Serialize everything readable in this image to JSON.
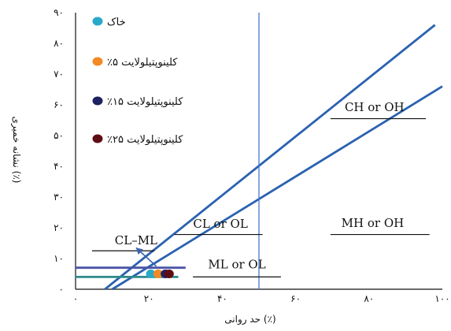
{
  "chart_data": {
    "type": "scatter",
    "title": "",
    "xlabel": "حد روانی (٪)",
    "ylabel": "نشانه خمیری (٪)",
    "xlim": [
      0,
      100
    ],
    "ylim": [
      0,
      90
    ],
    "x_ticks": [
      {
        "value": 0,
        "label": "۰"
      },
      {
        "value": 20,
        "label": "۲۰"
      },
      {
        "value": 40,
        "label": "۴۰"
      },
      {
        "value": 60,
        "label": "۶۰"
      },
      {
        "value": 80,
        "label": "۸۰"
      },
      {
        "value": 100,
        "label": "۱۰۰"
      }
    ],
    "y_ticks": [
      {
        "value": 0,
        "label": "۰"
      },
      {
        "value": 10,
        "label": "۱۰"
      },
      {
        "value": 20,
        "label": "۲۰"
      },
      {
        "value": 30,
        "label": "۳۰"
      },
      {
        "value": 40,
        "label": "۴۰"
      },
      {
        "value": 50,
        "label": "۵۰"
      },
      {
        "value": 60,
        "label": "۶۰"
      },
      {
        "value": 70,
        "label": "۷۰"
      },
      {
        "value": 80,
        "label": "۸۰"
      },
      {
        "value": 90,
        "label": "۹۰"
      }
    ],
    "series": [
      {
        "name": "خاک",
        "color": "#29a9c9",
        "points": [
          {
            "x": 20.5,
            "y": 5
          }
        ]
      },
      {
        "name": "کلینوپتیلولایت ۵٪",
        "color": "#f28a25",
        "points": [
          {
            "x": 22.5,
            "y": 5
          }
        ]
      },
      {
        "name": "کلینوپتیلولایت ۱۵٪",
        "color": "#1d2260",
        "points": [
          {
            "x": 24.5,
            "y": 5
          }
        ]
      },
      {
        "name": "کلینوپتیلولایت ۲۵٪",
        "color": "#5e0d14",
        "points": [
          {
            "x": 25.5,
            "y": 5
          }
        ]
      }
    ],
    "reference_lines": [
      {
        "name": "a-line",
        "color": "#2a62b0",
        "points": [
          [
            10,
            0
          ],
          [
            100,
            66
          ]
        ]
      },
      {
        "name": "u-line",
        "color": "#2a62b0",
        "points": [
          [
            8,
            0
          ],
          [
            98,
            86
          ]
        ]
      },
      {
        "name": "ll-50-line",
        "color": "#4479c9",
        "points": [
          [
            50,
            0
          ],
          [
            50,
            90
          ]
        ]
      },
      {
        "name": "pi-7-line",
        "color": "#4a55a8",
        "points": [
          [
            0,
            7
          ],
          [
            30,
            7
          ]
        ]
      },
      {
        "name": "pi-4-line",
        "color": "#2f8a8a",
        "points": [
          [
            0,
            4
          ],
          [
            28,
            4
          ]
        ]
      }
    ],
    "zones": [
      {
        "label": "CL–ML",
        "x": 16.5,
        "y": 14.6,
        "underline": [
          [
            4.5,
            12.5
          ],
          [
            21.5,
            12.5
          ]
        ]
      },
      {
        "label": "CL or OL",
        "x": 39.5,
        "y": 20,
        "underline": [
          [
            27,
            17.8
          ],
          [
            51,
            17.8
          ]
        ]
      },
      {
        "label": "ML or OL",
        "x": 44,
        "y": 6.8,
        "underline": [
          [
            32,
            4
          ],
          [
            56,
            4
          ]
        ]
      },
      {
        "label": "CH or OH",
        "x": 81.5,
        "y": 58,
        "underline": [
          [
            69.5,
            55.5
          ],
          [
            95.5,
            55.5
          ]
        ]
      },
      {
        "label": "MH or OH",
        "x": 81,
        "y": 20.2,
        "underline": [
          [
            69.5,
            17.8
          ],
          [
            96.5,
            17.8
          ]
        ]
      }
    ],
    "arrow": {
      "from": [
        22,
        7.5
      ],
      "to": [
        16.5,
        13.5
      ],
      "color": "#3a62b0"
    },
    "grid": false,
    "legend": "top-left"
  }
}
